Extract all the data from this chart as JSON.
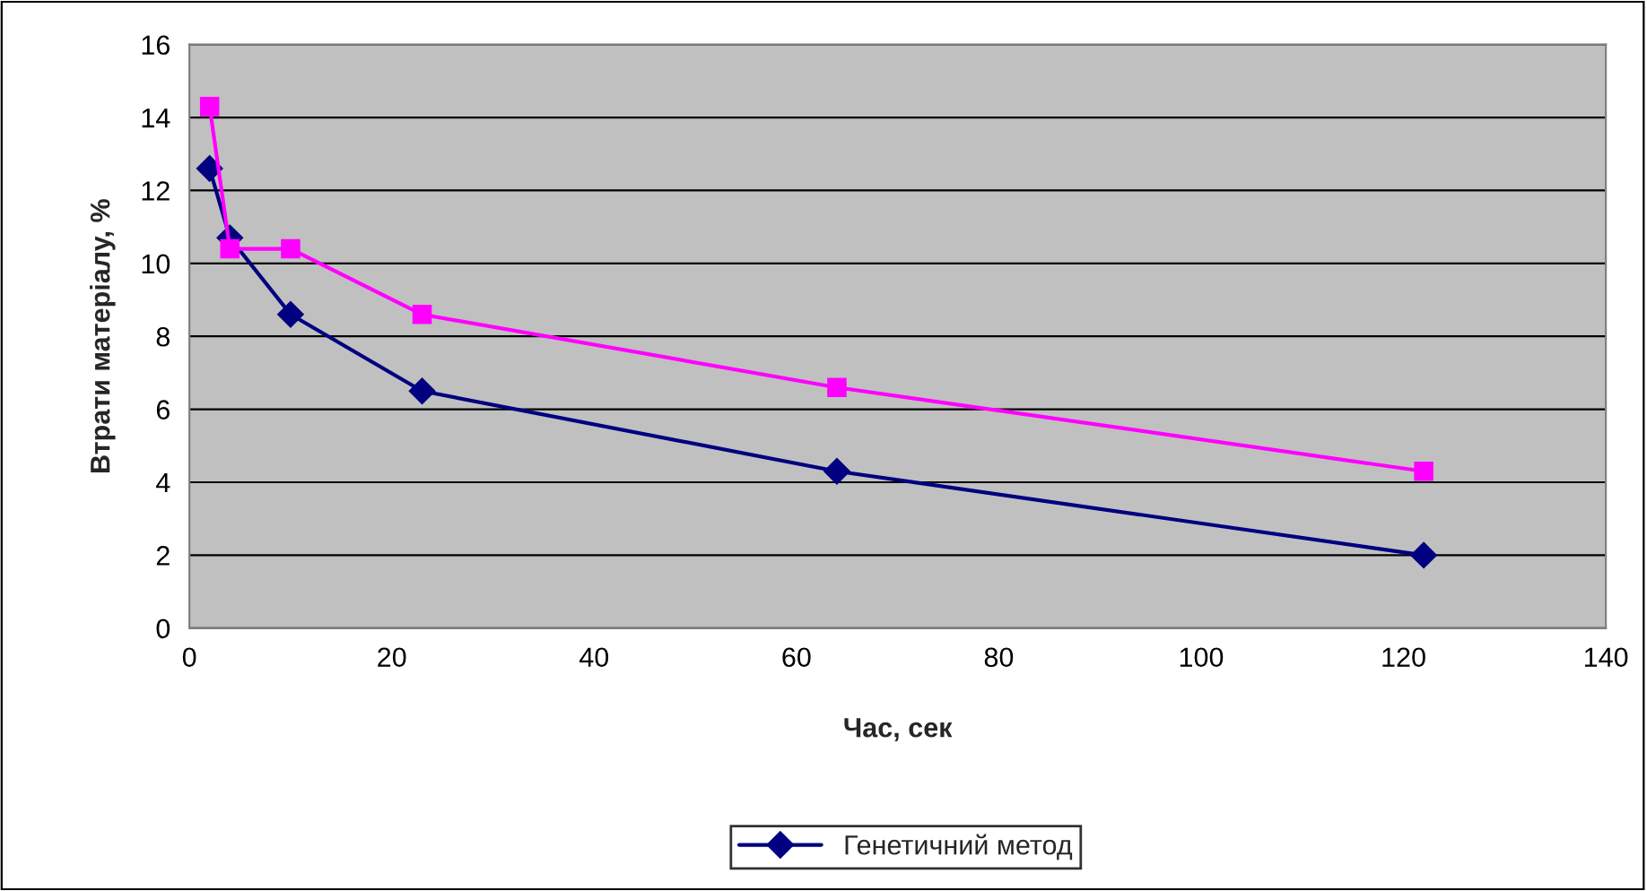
{
  "chart_data": {
    "type": "line",
    "xlabel": "Час, сек",
    "ylabel": "Втрати матеріалу, %",
    "xlim": [
      0,
      140
    ],
    "xticks": [
      0,
      20,
      40,
      60,
      80,
      100,
      120,
      140
    ],
    "ylim": [
      0,
      16
    ],
    "yticks": [
      0,
      2,
      4,
      6,
      8,
      10,
      12,
      14,
      16
    ],
    "grid": "y",
    "legend": "bottom",
    "series": [
      {
        "name": "Генетичний метод",
        "color": "#000080",
        "marker": "diamond",
        "x": [
          2,
          4,
          10,
          23,
          64,
          122
        ],
        "values": [
          12.6,
          10.7,
          8.6,
          6.5,
          4.3,
          2.0
        ]
      },
      {
        "color": "#ff00ff",
        "marker": "square",
        "x": [
          2,
          4,
          10,
          23,
          64,
          122
        ],
        "values": [
          14.3,
          10.4,
          10.4,
          8.6,
          6.6,
          4.3
        ]
      }
    ]
  }
}
